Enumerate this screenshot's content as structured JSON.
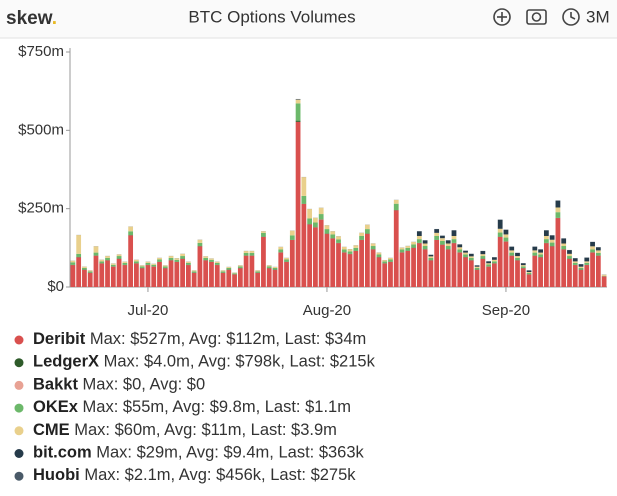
{
  "header": {
    "logo": "skew",
    "logo_dot": ".",
    "range_button": "3M"
  },
  "chart_data": {
    "type": "stacked_bar",
    "title": "BTC Options Volumes",
    "categories": [
      null,
      null,
      null,
      null,
      null,
      null,
      null,
      null,
      null,
      null,
      null,
      null,
      null,
      "Jul-20",
      null,
      null,
      null,
      null,
      null,
      null,
      null,
      null,
      null,
      null,
      null,
      null,
      null,
      null,
      null,
      null,
      null,
      null,
      null,
      null,
      null,
      null,
      null,
      null,
      null,
      null,
      null,
      null,
      null,
      null,
      "Aug-20",
      null,
      null,
      null,
      null,
      null,
      null,
      null,
      null,
      null,
      null,
      null,
      null,
      null,
      null,
      null,
      null,
      null,
      null,
      null,
      null,
      null,
      null,
      null,
      null,
      null,
      null,
      null,
      null,
      null,
      null,
      "Sep-20",
      null,
      null,
      null,
      null,
      null,
      null,
      null,
      null,
      null,
      null,
      null,
      null,
      null,
      null,
      null,
      null,
      null
    ],
    "ylim": [
      0,
      750
    ],
    "yticks": [
      {
        "value": 0,
        "label": "$0"
      },
      {
        "value": 250,
        "label": "$250m"
      },
      {
        "value": 500,
        "label": "$500m"
      },
      {
        "value": 750,
        "label": "$750m"
      }
    ],
    "grid": false,
    "series": [
      {
        "name": "Deribit",
        "summary": "Max: $527m, Avg: $112m, Last: $34m",
        "color": "#d9504e",
        "values": [
          70,
          95,
          55,
          45,
          100,
          75,
          85,
          65,
          90,
          70,
          165,
          75,
          60,
          70,
          65,
          80,
          60,
          85,
          80,
          90,
          70,
          45,
          130,
          85,
          80,
          70,
          45,
          55,
          40,
          60,
          100,
          100,
          45,
          160,
          60,
          55,
          110,
          80,
          150,
          527,
          265,
          200,
          190,
          215,
          170,
          155,
          140,
          110,
          105,
          115,
          150,
          170,
          120,
          95,
          75,
          80,
          245,
          110,
          115,
          125,
          140,
          120,
          85,
          150,
          135,
          120,
          140,
          110,
          95,
          85,
          55,
          90,
          65,
          75,
          160,
          145,
          100,
          85,
          60,
          40,
          100,
          95,
          140,
          130,
          220,
          120,
          90,
          70,
          55,
          70,
          110,
          100,
          34
        ]
      },
      {
        "name": "LedgerX",
        "summary": "Max: $4.0m, Avg: $798k, Last: $215k",
        "color": "#2e5b2a",
        "values": [
          0.8,
          0.8,
          0.8,
          0.8,
          0.8,
          0.8,
          0.8,
          0.8,
          0.8,
          0.8,
          0.8,
          0.8,
          0.8,
          0.8,
          0.8,
          0.8,
          0.8,
          0.8,
          0.8,
          0.8,
          0.8,
          0.8,
          0.8,
          0.8,
          0.8,
          0.8,
          0.8,
          0.8,
          0.8,
          0.8,
          0.8,
          0.8,
          0.8,
          0.8,
          0.8,
          0.8,
          0.8,
          0.8,
          0.8,
          4,
          0.8,
          0.8,
          0.8,
          0.8,
          0.8,
          0.8,
          0.8,
          0.8,
          0.8,
          0.8,
          0.8,
          0.8,
          0.8,
          0.8,
          0.8,
          0.8,
          0.8,
          0.8,
          0.8,
          0.8,
          0.8,
          0.8,
          0.8,
          0.8,
          0.8,
          0.8,
          0.8,
          0.8,
          0.8,
          0.8,
          0.8,
          0.8,
          0.8,
          0.8,
          0.8,
          0.8,
          0.8,
          0.8,
          0.8,
          0.8,
          0.8,
          0.8,
          0.8,
          0.8,
          0.8,
          0.8,
          0.8,
          0.8,
          0.8,
          0.8,
          0.8,
          0.8,
          0.215
        ]
      },
      {
        "name": "Bakkt",
        "summary": "Max: $0, Avg: $0",
        "color": "#e8a294",
        "values": [
          0,
          0,
          0,
          0,
          0,
          0,
          0,
          0,
          0,
          0,
          0,
          0,
          0,
          0,
          0,
          0,
          0,
          0,
          0,
          0,
          0,
          0,
          0,
          0,
          0,
          0,
          0,
          0,
          0,
          0,
          0,
          0,
          0,
          0,
          0,
          0,
          0,
          0,
          0,
          0,
          0,
          0,
          0,
          0,
          0,
          0,
          0,
          0,
          0,
          0,
          0,
          0,
          0,
          0,
          0,
          0,
          0,
          0,
          0,
          0,
          0,
          0,
          0,
          0,
          0,
          0,
          0,
          0,
          0,
          0,
          0,
          0,
          0,
          0,
          0,
          0,
          0,
          0,
          0,
          0,
          0,
          0,
          0,
          0,
          0,
          0,
          0,
          0,
          0,
          0,
          0,
          0,
          0
        ]
      },
      {
        "name": "OKEx",
        "summary": "Max: $55m, Avg: $9.8m, Last: $1.1m",
        "color": "#6cb86a",
        "values": [
          8,
          10,
          5,
          4,
          9,
          6,
          7,
          5,
          8,
          6,
          12,
          6,
          5,
          6,
          5,
          7,
          5,
          7,
          6,
          8,
          6,
          4,
          10,
          7,
          6,
          6,
          4,
          5,
          3,
          5,
          8,
          8,
          4,
          12,
          5,
          5,
          9,
          7,
          14,
          55,
          25,
          18,
          15,
          17,
          14,
          12,
          11,
          9,
          8,
          9,
          12,
          14,
          10,
          8,
          6,
          7,
          20,
          9,
          9,
          10,
          12,
          10,
          7,
          12,
          11,
          10,
          12,
          9,
          8,
          7,
          5,
          8,
          6,
          6,
          13,
          12,
          9,
          7,
          5,
          4,
          9,
          8,
          12,
          11,
          18,
          10,
          8,
          6,
          5,
          6,
          9,
          8,
          1.1
        ]
      },
      {
        "name": "CME",
        "summary": "Max: $60m, Avg: $11m, Last: $3.9m",
        "color": "#e9d08c",
        "values": [
          5,
          60,
          4,
          3,
          20,
          5,
          6,
          4,
          5,
          4,
          15,
          5,
          3,
          4,
          3,
          5,
          3,
          6,
          5,
          7,
          4,
          3,
          10,
          5,
          4,
          4,
          3,
          3,
          2,
          3,
          6,
          6,
          3,
          5,
          3,
          3,
          8,
          5,
          15,
          12,
          60,
          30,
          15,
          20,
          12,
          10,
          10,
          8,
          7,
          8,
          10,
          14,
          8,
          6,
          4,
          5,
          12,
          6,
          6,
          8,
          10,
          8,
          5,
          10,
          9,
          8,
          10,
          7,
          6,
          5,
          4,
          6,
          4,
          5,
          12,
          10,
          7,
          6,
          4,
          3,
          7,
          6,
          10,
          9,
          15,
          8,
          7,
          5,
          4,
          5,
          10,
          8,
          3.9
        ]
      },
      {
        "name": "bit.com",
        "summary": "Max: $29m, Avg: $9.4m, Last: $363k",
        "color": "#263b4a",
        "values": [
          0,
          0,
          0,
          0,
          0,
          0,
          0,
          0,
          0,
          0,
          0,
          0,
          0,
          0,
          0,
          0,
          0,
          0,
          0,
          0,
          0,
          0,
          0,
          0,
          0,
          0,
          0,
          0,
          0,
          0,
          0,
          0,
          0,
          0,
          0,
          0,
          0,
          0,
          0,
          0,
          0,
          0,
          0,
          0,
          0,
          0,
          0,
          0,
          0,
          0,
          0,
          0,
          0,
          0,
          0,
          0,
          0,
          0,
          0,
          0,
          15,
          10,
          5,
          12,
          8,
          10,
          18,
          9,
          6,
          8,
          4,
          10,
          6,
          8,
          29,
          15,
          12,
          10,
          6,
          5,
          12,
          10,
          18,
          14,
          22,
          16,
          12,
          10,
          8,
          12,
          14,
          10,
          0.363
        ]
      },
      {
        "name": "Huobi",
        "summary": "Max: $2.1m, Avg: $456k, Last: $275k",
        "color": "#4a5a68",
        "values": [
          0.4,
          0.4,
          0.4,
          0.4,
          0.4,
          0.4,
          0.4,
          0.4,
          0.4,
          0.4,
          0.4,
          0.4,
          0.4,
          0.4,
          0.4,
          0.4,
          0.4,
          0.4,
          0.4,
          0.4,
          0.4,
          0.4,
          0.4,
          0.4,
          0.4,
          0.4,
          0.4,
          0.4,
          0.4,
          0.4,
          0.4,
          0.4,
          0.4,
          0.4,
          0.4,
          0.4,
          0.4,
          0.4,
          0.4,
          2.1,
          0.4,
          0.4,
          0.4,
          0.4,
          0.4,
          0.4,
          0.4,
          0.4,
          0.4,
          0.4,
          0.4,
          0.4,
          0.4,
          0.4,
          0.4,
          0.4,
          0.4,
          0.4,
          0.4,
          0.4,
          0.4,
          0.4,
          0.4,
          0.4,
          0.4,
          0.4,
          0.4,
          0.4,
          0.4,
          0.4,
          0.4,
          0.4,
          0.4,
          0.4,
          0.4,
          0.4,
          0.4,
          0.4,
          0.4,
          0.4,
          0.4,
          0.4,
          0.4,
          0.4,
          0.4,
          0.4,
          0.4,
          0.4,
          0.4,
          0.4,
          0.4,
          0.4,
          0.275
        ]
      }
    ]
  }
}
